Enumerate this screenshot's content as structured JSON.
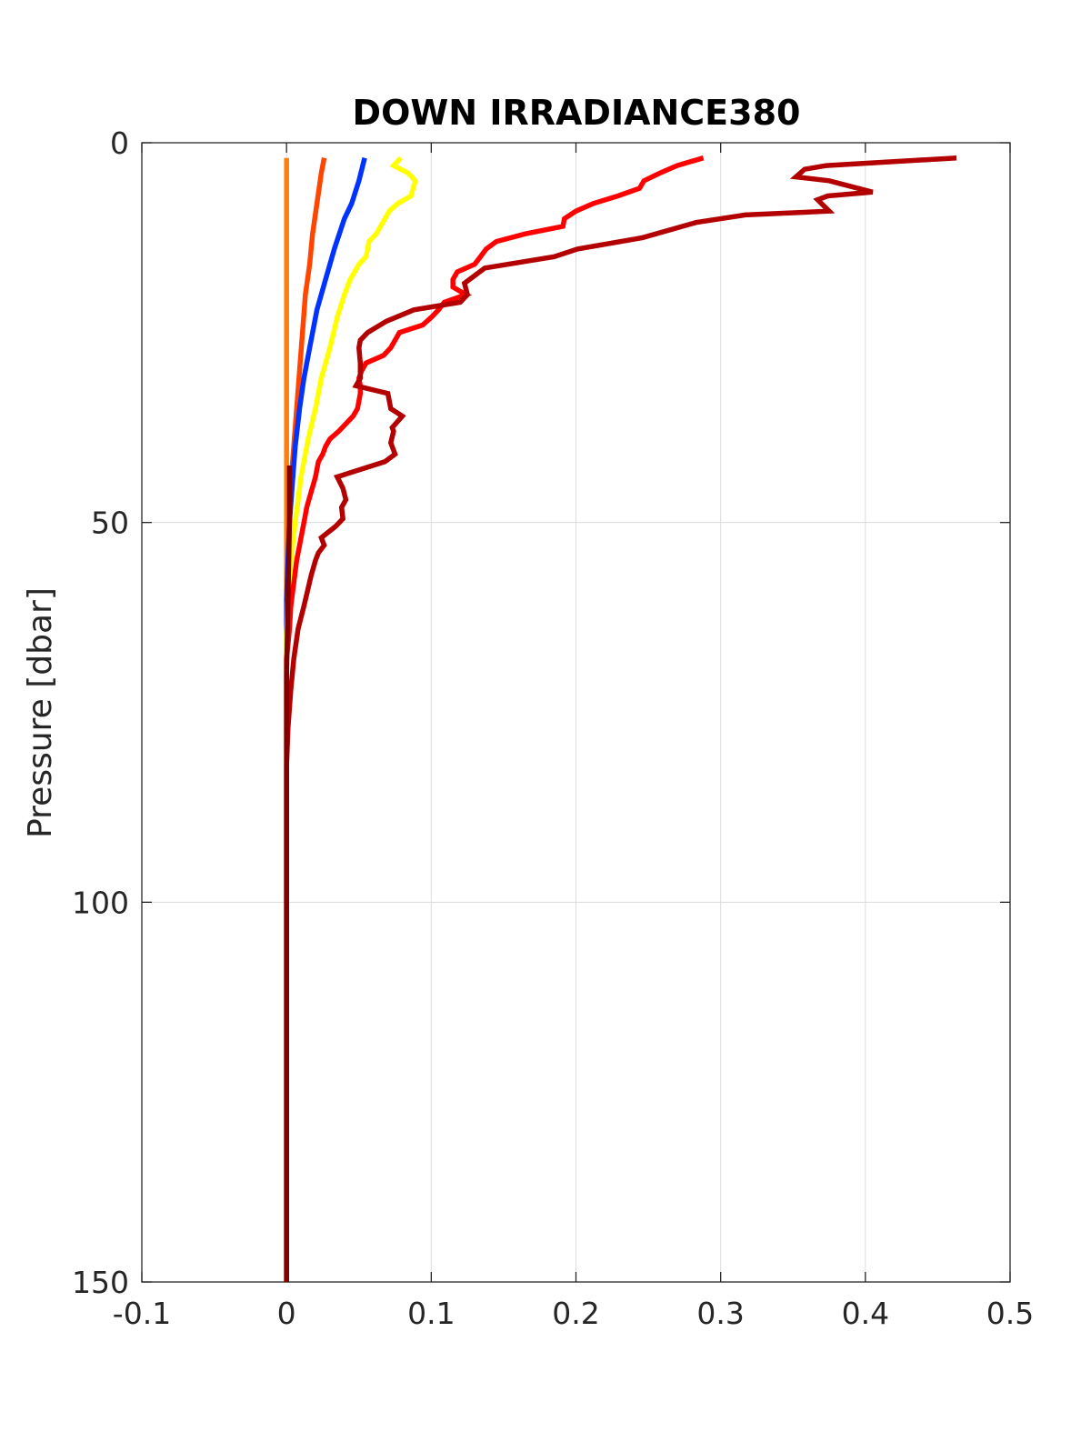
{
  "chart_data": {
    "type": "line",
    "title": "DOWN IRRADIANCE380",
    "xlabel": "",
    "ylabel": "Pressure [dbar]",
    "xlim": [
      -0.1,
      0.5
    ],
    "ylim": [
      0,
      150
    ],
    "y_reversed": true,
    "grid": true,
    "xticks": [
      -0.1,
      0,
      0.1,
      0.2,
      0.3,
      0.4,
      0.5
    ],
    "xtick_labels": [
      "-0.1",
      "0",
      "0.1",
      "0.2",
      "0.3",
      "0.4",
      "0.5"
    ],
    "yticks": [
      0,
      50,
      100,
      150
    ],
    "ytick_labels": [
      "0",
      "50",
      "100",
      "150"
    ],
    "series": [
      {
        "color": "#ff7f0e",
        "points": [
          [
            0.0,
            2
          ],
          [
            0.0,
            20
          ],
          [
            0.0,
            40
          ],
          [
            0.0,
            60
          ],
          [
            0.0,
            80
          ],
          [
            0.0,
            100
          ],
          [
            0.0,
            150
          ]
        ]
      },
      {
        "color": "#ff4500",
        "points": [
          [
            0.026,
            2
          ],
          [
            0.024,
            4
          ],
          [
            0.021,
            8
          ],
          [
            0.018,
            12
          ],
          [
            0.016,
            16
          ],
          [
            0.013,
            20
          ],
          [
            0.011,
            25
          ],
          [
            0.009,
            30
          ],
          [
            0.007,
            35
          ],
          [
            0.005,
            40
          ],
          [
            0.003,
            45
          ],
          [
            0.002,
            50
          ],
          [
            0.001,
            55
          ],
          [
            0.0,
            60
          ],
          [
            0.0,
            150
          ]
        ]
      },
      {
        "color": "#0033ff",
        "points": [
          [
            0.054,
            2
          ],
          [
            0.05,
            5
          ],
          [
            0.045,
            8
          ],
          [
            0.04,
            10
          ],
          [
            0.033,
            14
          ],
          [
            0.027,
            18
          ],
          [
            0.021,
            22
          ],
          [
            0.016,
            27
          ],
          [
            0.012,
            31
          ],
          [
            0.009,
            35
          ],
          [
            0.006,
            40
          ],
          [
            0.004,
            45
          ],
          [
            0.002,
            50
          ],
          [
            0.001,
            55
          ],
          [
            0.0,
            60
          ],
          [
            0.0,
            150
          ]
        ]
      },
      {
        "color": "#ffff00",
        "points": [
          [
            0.079,
            2
          ],
          [
            0.074,
            3
          ],
          [
            0.084,
            4
          ],
          [
            0.089,
            5
          ],
          [
            0.086,
            7
          ],
          [
            0.077,
            8
          ],
          [
            0.071,
            9
          ],
          [
            0.068,
            10
          ],
          [
            0.062,
            12
          ],
          [
            0.057,
            13
          ],
          [
            0.055,
            15
          ],
          [
            0.05,
            16
          ],
          [
            0.044,
            18
          ],
          [
            0.04,
            20
          ],
          [
            0.035,
            23
          ],
          [
            0.03,
            27
          ],
          [
            0.024,
            31
          ],
          [
            0.02,
            35
          ],
          [
            0.015,
            39
          ],
          [
            0.01,
            44
          ],
          [
            0.006,
            50
          ],
          [
            0.003,
            55
          ],
          [
            0.001,
            60
          ],
          [
            0.0,
            65
          ],
          [
            0.0,
            150
          ]
        ]
      },
      {
        "color": "#ff0000",
        "points": [
          [
            0.288,
            2
          ],
          [
            0.27,
            3
          ],
          [
            0.258,
            4
          ],
          [
            0.247,
            5
          ],
          [
            0.244,
            6
          ],
          [
            0.229,
            7
          ],
          [
            0.212,
            8
          ],
          [
            0.2,
            9
          ],
          [
            0.192,
            10
          ],
          [
            0.191,
            11
          ],
          [
            0.165,
            12
          ],
          [
            0.145,
            13
          ],
          [
            0.138,
            14
          ],
          [
            0.134,
            15
          ],
          [
            0.13,
            16
          ],
          [
            0.118,
            17
          ],
          [
            0.115,
            18
          ],
          [
            0.115,
            19
          ],
          [
            0.124,
            20
          ],
          [
            0.109,
            21
          ],
          [
            0.105,
            22
          ],
          [
            0.1,
            23
          ],
          [
            0.094,
            24
          ],
          [
            0.078,
            25
          ],
          [
            0.075,
            26
          ],
          [
            0.072,
            27
          ],
          [
            0.067,
            28
          ],
          [
            0.055,
            29
          ],
          [
            0.052,
            30
          ],
          [
            0.05,
            31
          ],
          [
            0.051,
            32
          ],
          [
            0.051,
            33
          ],
          [
            0.05,
            34
          ],
          [
            0.049,
            35
          ],
          [
            0.046,
            36
          ],
          [
            0.041,
            37
          ],
          [
            0.036,
            38
          ],
          [
            0.03,
            39
          ],
          [
            0.027,
            40
          ],
          [
            0.025,
            41
          ],
          [
            0.022,
            42
          ],
          [
            0.02,
            44
          ],
          [
            0.017,
            46
          ],
          [
            0.014,
            48
          ],
          [
            0.012,
            50
          ],
          [
            0.01,
            52
          ],
          [
            0.007,
            55
          ],
          [
            0.005,
            58
          ],
          [
            0.003,
            61
          ],
          [
            0.002,
            64
          ],
          [
            0.0,
            68
          ],
          [
            0.0,
            150
          ]
        ]
      },
      {
        "color": "#b30000",
        "points": [
          [
            0.463,
            2
          ],
          [
            0.373,
            3
          ],
          [
            0.358,
            3.5
          ],
          [
            0.352,
            4.5
          ],
          [
            0.375,
            5
          ],
          [
            0.405,
            6.5
          ],
          [
            0.374,
            7
          ],
          [
            0.367,
            7.5
          ],
          [
            0.375,
            9
          ],
          [
            0.317,
            9.5
          ],
          [
            0.283,
            10.5
          ],
          [
            0.246,
            12.5
          ],
          [
            0.201,
            14
          ],
          [
            0.185,
            15
          ],
          [
            0.137,
            16.5
          ],
          [
            0.123,
            18.5
          ],
          [
            0.125,
            20
          ],
          [
            0.12,
            21
          ],
          [
            0.088,
            22
          ],
          [
            0.069,
            23.5
          ],
          [
            0.056,
            25
          ],
          [
            0.051,
            26
          ],
          [
            0.05,
            27
          ],
          [
            0.051,
            29
          ],
          [
            0.051,
            31
          ],
          [
            0.048,
            32
          ],
          [
            0.07,
            33
          ],
          [
            0.072,
            35
          ],
          [
            0.08,
            36
          ],
          [
            0.073,
            37.5
          ],
          [
            0.074,
            38
          ],
          [
            0.072,
            39.5
          ],
          [
            0.075,
            41
          ],
          [
            0.068,
            42
          ],
          [
            0.035,
            44
          ],
          [
            0.039,
            45.5
          ],
          [
            0.041,
            47
          ],
          [
            0.038,
            48
          ],
          [
            0.039,
            49.5
          ],
          [
            0.034,
            50.5
          ],
          [
            0.024,
            52
          ],
          [
            0.026,
            53
          ],
          [
            0.022,
            54
          ],
          [
            0.02,
            55
          ],
          [
            0.017,
            57
          ],
          [
            0.012,
            61
          ],
          [
            0.008,
            64
          ],
          [
            0.005,
            68
          ],
          [
            0.003,
            72
          ],
          [
            0.001,
            77
          ],
          [
            0.0,
            82
          ],
          [
            0.0,
            150
          ]
        ]
      },
      {
        "color": "#800000",
        "points": [
          [
            0.002,
            42.5
          ],
          [
            0.002,
            50
          ],
          [
            0.001,
            60
          ],
          [
            0.0,
            70
          ],
          [
            0.0,
            100
          ],
          [
            0.0,
            150
          ]
        ]
      }
    ]
  }
}
